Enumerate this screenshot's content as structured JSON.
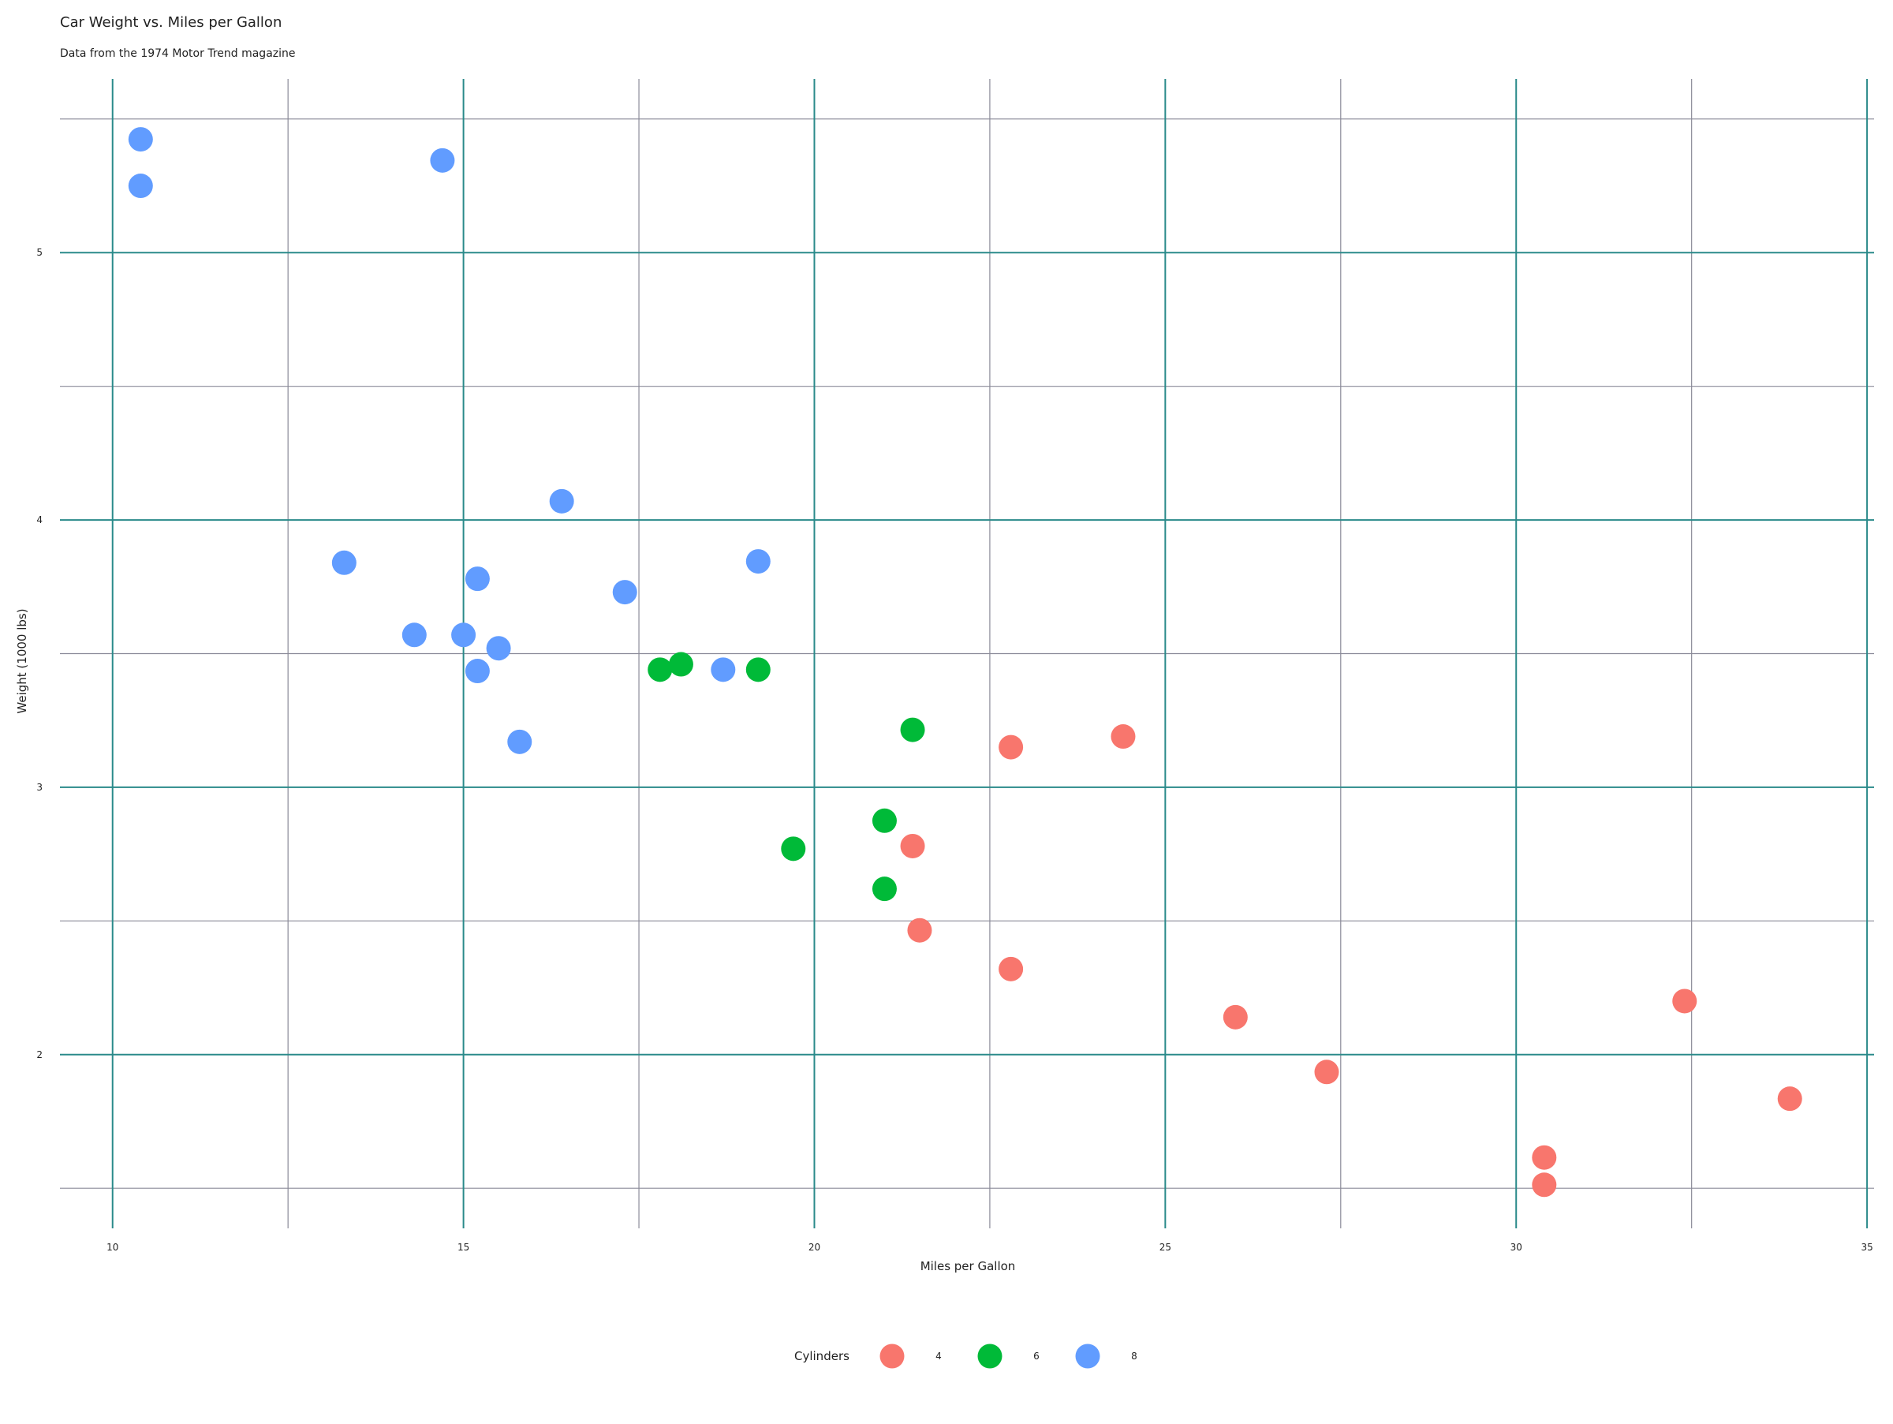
{
  "chart_data": {
    "type": "scatter",
    "title": "Car Weight vs. Miles per Gallon",
    "subtitle": "Data from the 1974 Motor Trend magazine",
    "xlabel": "Miles per Gallon",
    "ylabel": "Weight (1000 lbs)",
    "xlim": [
      9.25,
      35.1
    ],
    "ylim": [
      1.35,
      5.65
    ],
    "x_ticks": [
      10,
      15,
      20,
      25,
      30,
      35
    ],
    "y_ticks": [
      2,
      3,
      4,
      5
    ],
    "x_minor": [
      12.5,
      17.5,
      22.5,
      27.5,
      32.5
    ],
    "y_minor": [
      1.5,
      2.5,
      3.5,
      4.5,
      5.5
    ],
    "grid": true,
    "colors": {
      "major_grid": "#2a8a8a",
      "minor_grid": "#8a8a98",
      "4": "#f8766d",
      "6": "#00ba38",
      "8": "#619cff"
    },
    "legend": {
      "title": "Cylinders",
      "position": "bottom",
      "entries": [
        "4",
        "6",
        "8"
      ]
    },
    "series": [
      {
        "name": "4",
        "points": [
          [
            22.8,
            2.32
          ],
          [
            24.4,
            3.19
          ],
          [
            22.8,
            3.15
          ],
          [
            32.4,
            2.2
          ],
          [
            30.4,
            1.615
          ],
          [
            33.9,
            1.835
          ],
          [
            21.5,
            2.465
          ],
          [
            27.3,
            1.935
          ],
          [
            26.0,
            2.14
          ],
          [
            30.4,
            1.513
          ],
          [
            21.4,
            2.78
          ]
        ]
      },
      {
        "name": "6",
        "points": [
          [
            21.0,
            2.62
          ],
          [
            21.0,
            2.875
          ],
          [
            21.4,
            3.215
          ],
          [
            18.1,
            3.46
          ],
          [
            19.2,
            3.44
          ],
          [
            17.8,
            3.44
          ],
          [
            19.7,
            2.77
          ]
        ]
      },
      {
        "name": "8",
        "points": [
          [
            18.7,
            3.44
          ],
          [
            14.3,
            3.57
          ],
          [
            16.4,
            4.07
          ],
          [
            17.3,
            3.73
          ],
          [
            15.2,
            3.78
          ],
          [
            10.4,
            5.25
          ],
          [
            10.4,
            5.424
          ],
          [
            14.7,
            5.345
          ],
          [
            15.5,
            3.52
          ],
          [
            15.2,
            3.435
          ],
          [
            13.3,
            3.84
          ],
          [
            19.2,
            3.845
          ],
          [
            15.8,
            3.17
          ],
          [
            15.0,
            3.57
          ]
        ]
      }
    ]
  }
}
